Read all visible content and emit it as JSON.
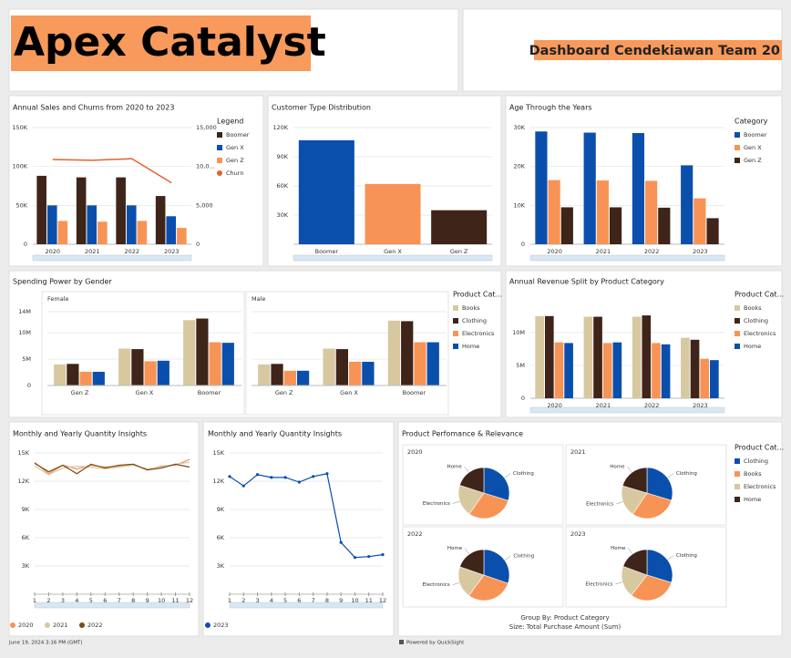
{
  "header": {
    "title": "Apex Catalyst",
    "subtitle": "Dashboard Cendekiawan Team 20"
  },
  "chart_data": [
    {
      "type": "bar",
      "title": "Annual Sales and Churns from 2020 to 2023",
      "legend_title": "Legend",
      "categories": [
        "2020",
        "2021",
        "2022",
        "2023"
      ],
      "series": [
        {
          "name": "Boomer",
          "color": "#3f2419",
          "values": [
            88000,
            86000,
            86000,
            62000
          ]
        },
        {
          "name": "Gen X",
          "color": "#0b4fad",
          "values": [
            50000,
            50000,
            50000,
            36000
          ]
        },
        {
          "name": "Gen Z",
          "color": "#f89356",
          "values": [
            30000,
            29000,
            30000,
            21000
          ]
        },
        {
          "name": "Churn",
          "color": "#e2632f",
          "type": "line",
          "axis": "y2",
          "values": [
            10900,
            10800,
            11000,
            7900
          ]
        }
      ],
      "ylim": [
        0,
        150000
      ],
      "yticks": [
        0,
        {
          "value": 50000,
          "label": "50K"
        },
        {
          "value": 100000,
          "label": "100K"
        },
        {
          "value": 150000,
          "label": "150K"
        }
      ],
      "y2lim": [
        0,
        15000
      ],
      "y2ticks": [
        0,
        {
          "value": 5000,
          "label": "5,000"
        },
        {
          "value": 10000,
          "label": "10,0..."
        },
        {
          "value": 15000,
          "label": "15,000"
        }
      ]
    },
    {
      "type": "bar",
      "title": "Customer Type Distribution",
      "categories": [
        "Boomer",
        "Gen X",
        "Gen Z"
      ],
      "values": [
        107000,
        62000,
        35000
      ],
      "colors": [
        "#0b4fad",
        "#f89356",
        "#3f2419"
      ],
      "ylim": [
        0,
        120000
      ],
      "yticks": [
        {
          "value": 30000,
          "label": "30K"
        },
        {
          "value": 60000,
          "label": "60K"
        },
        {
          "value": 90000,
          "label": "90K"
        },
        {
          "value": 120000,
          "label": "120K"
        }
      ]
    },
    {
      "type": "bar",
      "title": "Age Through the Years",
      "legend_title": "Category",
      "categories": [
        "2020",
        "2021",
        "2022",
        "2023"
      ],
      "series": [
        {
          "name": "Boomer",
          "color": "#0b4fad",
          "values": [
            29000,
            28700,
            28600,
            20300
          ]
        },
        {
          "name": "Gen X",
          "color": "#f89356",
          "values": [
            16500,
            16400,
            16300,
            11800
          ]
        },
        {
          "name": "Gen Z",
          "color": "#3f2419",
          "values": [
            9500,
            9500,
            9400,
            6700
          ]
        }
      ],
      "ylim": [
        0,
        30000
      ],
      "yticks": [
        0,
        {
          "value": 10000,
          "label": "10K"
        },
        {
          "value": 20000,
          "label": "20K"
        },
        {
          "value": 30000,
          "label": "30K"
        }
      ]
    },
    {
      "type": "bar",
      "title": "Spending Power by Gender",
      "legend_title": "Product Cat...",
      "categories": [
        "Gen Z",
        "Gen X",
        "Boomer"
      ],
      "panels": [
        {
          "name": "Female",
          "series": [
            {
              "name": "Books",
              "color": "#d8c8a0",
              "values": [
                4000000,
                7000000,
                12400000
              ]
            },
            {
              "name": "Clothing",
              "color": "#3f2419",
              "values": [
                4100000,
                6900000,
                12700000
              ]
            },
            {
              "name": "Electronics",
              "color": "#f89356",
              "values": [
                2600000,
                4600000,
                8200000
              ]
            },
            {
              "name": "Home",
              "color": "#0b4fad",
              "values": [
                2600000,
                4700000,
                8100000
              ]
            }
          ]
        },
        {
          "name": "Male",
          "series": [
            {
              "name": "Books",
              "color": "#d8c8a0",
              "values": [
                4000000,
                7000000,
                12300000
              ]
            },
            {
              "name": "Clothing",
              "color": "#3f2419",
              "values": [
                4100000,
                6900000,
                12200000
              ]
            },
            {
              "name": "Electronics",
              "color": "#f89356",
              "values": [
                2800000,
                4500000,
                8200000
              ]
            },
            {
              "name": "Home",
              "color": "#0b4fad",
              "values": [
                2800000,
                4500000,
                8200000
              ]
            }
          ]
        }
      ],
      "ylim": [
        0,
        14000000
      ],
      "yticks": [
        0,
        {
          "value": 5000000,
          "label": "5M"
        },
        {
          "value": 10000000,
          "label": "10M"
        },
        {
          "value": 14000000,
          "label": "14M"
        }
      ]
    },
    {
      "type": "bar",
      "title": "Annual Revenue Split by Product Category",
      "legend_title": "Product Cat...",
      "categories": [
        "2020",
        "2021",
        "2022",
        "2023"
      ],
      "series": [
        {
          "name": "Books",
          "color": "#d8c8a0",
          "values": [
            12500000,
            12400000,
            12400000,
            9200000
          ]
        },
        {
          "name": "Clothing",
          "color": "#3f2419",
          "values": [
            12500000,
            12400000,
            12600000,
            8900000
          ]
        },
        {
          "name": "Electronics",
          "color": "#f89356",
          "values": [
            8500000,
            8400000,
            8400000,
            6000000
          ]
        },
        {
          "name": "Home",
          "color": "#0b4fad",
          "values": [
            8400000,
            8500000,
            8200000,
            5800000
          ]
        }
      ],
      "ylim": [
        0,
        14000000
      ],
      "yticks": [
        0,
        {
          "value": 5000000,
          "label": "5M"
        },
        {
          "value": 10000000,
          "label": "10M"
        }
      ]
    },
    {
      "type": "line",
      "title": "Monthly and Yearly Quantity Insights",
      "x": [
        1,
        2,
        3,
        4,
        5,
        6,
        7,
        8,
        9,
        10,
        11,
        12
      ],
      "series": [
        {
          "name": "2020",
          "color": "#f89356",
          "values": [
            14000,
            12800,
            13700,
            13300,
            13700,
            13500,
            13600,
            13800,
            13200,
            13600,
            13700,
            14300
          ]
        },
        {
          "name": "2021",
          "color": "#d8c8a0",
          "values": [
            13600,
            12700,
            13400,
            13600,
            13500,
            13300,
            13500,
            13700,
            13300,
            13500,
            13800,
            14000
          ]
        },
        {
          "name": "2022",
          "color": "#7a4a1e",
          "values": [
            13900,
            13000,
            13700,
            12800,
            13800,
            13400,
            13700,
            13800,
            13200,
            13400,
            13800,
            13500
          ]
        }
      ],
      "xlim": [
        1,
        12
      ],
      "xticks": [
        1,
        2,
        3,
        4,
        5,
        6,
        7,
        8,
        9,
        10,
        11,
        12
      ],
      "ylim": [
        0,
        15000
      ],
      "yticks": [
        {
          "value": 3000,
          "label": "3K"
        },
        {
          "value": 6000,
          "label": "6K"
        },
        {
          "value": 9000,
          "label": "9K"
        },
        {
          "value": 12000,
          "label": "12K"
        },
        {
          "value": 15000,
          "label": "15K"
        }
      ]
    },
    {
      "type": "line",
      "title": "Monthly and Yearly Quantity Insights",
      "x": [
        1,
        2,
        3,
        4,
        5,
        6,
        7,
        8,
        9,
        10,
        11,
        12
      ],
      "series": [
        {
          "name": "2023",
          "color": "#0b4fad",
          "values": [
            12500,
            11500,
            12700,
            12400,
            12400,
            11900,
            12500,
            12800,
            5500,
            3900,
            4000,
            4200
          ]
        }
      ],
      "xlim": [
        1,
        12
      ],
      "xticks": [
        1,
        2,
        3,
        4,
        5,
        6,
        7,
        8,
        9,
        10,
        11,
        12
      ],
      "ylim": [
        0,
        15000
      ],
      "yticks": [
        {
          "value": 3000,
          "label": "3K"
        },
        {
          "value": 6000,
          "label": "6K"
        },
        {
          "value": 9000,
          "label": "9K"
        },
        {
          "value": 12000,
          "label": "12K"
        },
        {
          "value": 15000,
          "label": "15K"
        }
      ]
    },
    {
      "type": "pie",
      "title": "Product Perfomance & Relevance",
      "legend_title": "Product Cat...",
      "categories": [
        "Clothing",
        "Books",
        "Electronics",
        "Home"
      ],
      "colors": [
        "#0b4fad",
        "#f89356",
        "#d8c8a0",
        "#3f2419"
      ],
      "pies": [
        {
          "title": "2020",
          "values": [
            12500000,
            12500000,
            8500000,
            8400000
          ]
        },
        {
          "title": "2021",
          "values": [
            12400000,
            12400000,
            8400000,
            8500000
          ]
        },
        {
          "title": "2022",
          "values": [
            12600000,
            12400000,
            8400000,
            8200000
          ]
        },
        {
          "title": "2023",
          "values": [
            8900000,
            9200000,
            6000000,
            5800000
          ]
        }
      ],
      "notes": [
        "Group By: Product Category",
        "Size: Total Purchase Amount (Sum)"
      ]
    }
  ],
  "footer": {
    "timestamp": "June 19, 2024 3:16 PM (GMT)",
    "powered": "Powered by QuickSight"
  }
}
